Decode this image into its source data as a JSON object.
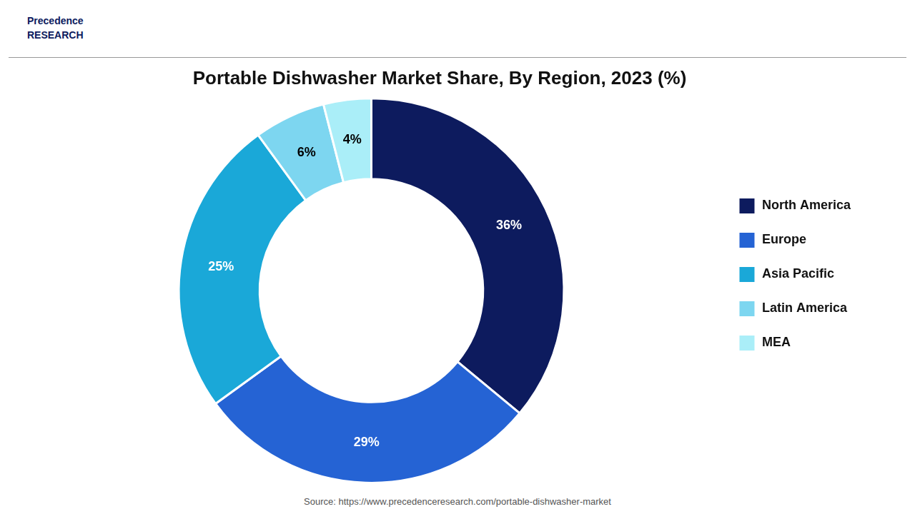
{
  "chart_data": {
    "type": "doughnut",
    "title": "Portable Dishwasher Market Share, By Region, 2023 (%)",
    "categories": [
      "North America",
      "Europe",
      "Asia Pacific",
      "Latin America",
      "MEA"
    ],
    "values": [
      36,
      29,
      25,
      6,
      4
    ],
    "value_labels": [
      "36%",
      "29%",
      "25%",
      "6%",
      "4%"
    ],
    "colors": [
      "#0d1b5e",
      "#2563d4",
      "#1aa8d8",
      "#7dd6f0",
      "#aaeef8"
    ],
    "data_labels": true,
    "legend": "right",
    "annotations": [
      "Precedence\nRESEARCH",
      "Source: https://www.precedenceresearch.com/portable-dishwasher-market"
    ]
  }
}
